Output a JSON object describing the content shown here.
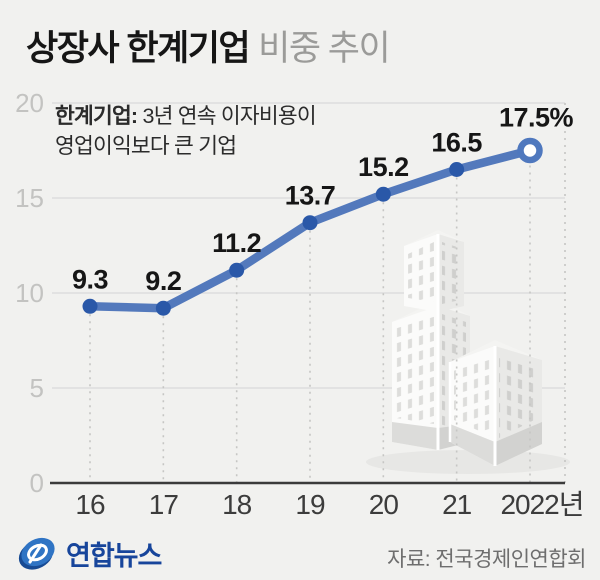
{
  "title": {
    "emphasis": "상장사 한계기업",
    "rest": "비중 추이"
  },
  "annotation": {
    "term": "한계기업:",
    "line1": " 3년 연속 이자비용이",
    "line2": "영업이익보다 큰 기업"
  },
  "chart_data": {
    "type": "line",
    "title": "상장사 한계기업 비중 추이",
    "categories": [
      "16",
      "17",
      "18",
      "19",
      "20",
      "21",
      "2022년"
    ],
    "values": [
      9.3,
      9.2,
      11.2,
      13.7,
      15.2,
      16.5,
      17.5
    ],
    "point_labels": [
      "9.3",
      "9.2",
      "11.2",
      "13.7",
      "15.2",
      "16.5",
      "17.5%"
    ],
    "unit": "%",
    "ylim": [
      0,
      20
    ],
    "yticks": [
      0,
      5,
      10,
      15,
      20
    ],
    "grid": "horizontal solid, vertical dashed drop-lines",
    "legend": "none",
    "last_point_style": "open-ring"
  },
  "footer": {
    "logo_text": "연합뉴스",
    "source": "자료: 전국경제인연합회"
  },
  "colors": {
    "background": "#f1f1ef",
    "line": "#5379bc",
    "dot": "#2a58a8",
    "ring": "#4f78be",
    "grid": "#dedede",
    "dash": "#c6c6c4",
    "axis": "#3b3b3b",
    "ytick_text": "#c3c3c1",
    "xtick_text": "#3c3c3c",
    "label_text": "#161616",
    "logo_blue": "#2f74c4",
    "logo_navy": "#174a93"
  }
}
